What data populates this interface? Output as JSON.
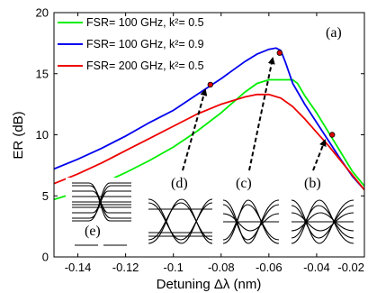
{
  "chart_data": {
    "type": "line",
    "xlabel": "Detuning Δλ (nm)",
    "ylabel": "ER (dB)",
    "xlim": [
      -0.15,
      -0.02
    ],
    "ylim": [
      0,
      20
    ],
    "xticks": [
      {
        "value": -0.14,
        "label": "-0.14"
      },
      {
        "value": -0.12,
        "label": "-0.12"
      },
      {
        "value": -0.1,
        "label": "-0.1"
      },
      {
        "value": -0.08,
        "label": "-0.08"
      },
      {
        "value": -0.06,
        "label": "-0.06"
      },
      {
        "value": -0.04,
        "label": "-0.04"
      },
      {
        "value": -0.02,
        "label": "-0.02"
      }
    ],
    "yticks": [
      {
        "value": 0,
        "label": "0"
      },
      {
        "value": 5,
        "label": "5"
      },
      {
        "value": 10,
        "label": "10"
      },
      {
        "value": 15,
        "label": "15"
      },
      {
        "value": 20,
        "label": "20"
      }
    ],
    "grid": false,
    "legend_position": "top-left",
    "series": [
      {
        "name": "FSR= 100 GHz, k²= 0.5",
        "color": "#00ee00",
        "x": [
          -0.15,
          -0.14,
          -0.13,
          -0.12,
          -0.11,
          -0.1,
          -0.09,
          -0.08,
          -0.07,
          -0.065,
          -0.06,
          -0.055,
          -0.05,
          -0.048,
          -0.045,
          -0.04,
          -0.035,
          -0.03,
          -0.025,
          -0.02
        ],
        "y": [
          4.7,
          5.3,
          6.0,
          6.9,
          7.9,
          9.0,
          10.3,
          11.8,
          13.5,
          14.2,
          14.5,
          14.5,
          14.5,
          14.2,
          13.2,
          11.8,
          10.2,
          8.6,
          7.0,
          5.8
        ]
      },
      {
        "name": "FSR= 100 GHz, k²= 0.9",
        "color": "#0000ee",
        "x": [
          -0.15,
          -0.14,
          -0.13,
          -0.12,
          -0.11,
          -0.1,
          -0.09,
          -0.08,
          -0.07,
          -0.065,
          -0.06,
          -0.057,
          -0.055,
          -0.053,
          -0.05,
          -0.045,
          -0.04,
          -0.035,
          -0.03,
          -0.025,
          -0.02
        ],
        "y": [
          7.2,
          8.0,
          8.9,
          9.9,
          11.0,
          12.0,
          13.3,
          14.6,
          16.0,
          16.6,
          17.0,
          17.1,
          16.9,
          15.9,
          14.2,
          12.5,
          11.0,
          9.5,
          8.0,
          6.6,
          5.5
        ]
      },
      {
        "name": "FSR= 200 GHz, k²= 0.5",
        "color": "#ee0000",
        "x": [
          -0.15,
          -0.14,
          -0.13,
          -0.12,
          -0.11,
          -0.1,
          -0.09,
          -0.08,
          -0.07,
          -0.065,
          -0.06,
          -0.055,
          -0.05,
          -0.045,
          -0.04,
          -0.035,
          -0.03,
          -0.025,
          -0.02
        ],
        "y": [
          6.0,
          6.8,
          7.7,
          8.7,
          9.7,
          10.7,
          11.7,
          12.5,
          13.1,
          13.3,
          13.3,
          13.0,
          12.3,
          11.3,
          10.2,
          9.1,
          7.9,
          6.7,
          5.5
        ]
      }
    ],
    "markers": [
      {
        "label": "(d)",
        "x": -0.0845,
        "y": 14.1
      },
      {
        "label": "(c)",
        "x": -0.0555,
        "y": 16.7
      },
      {
        "label": "(b)",
        "x": -0.0335,
        "y": 10.0
      }
    ],
    "annotations": {
      "panel_label": "(a)",
      "eye_labels": [
        "(e)",
        "(d)",
        "(c)",
        "(b)"
      ]
    }
  }
}
